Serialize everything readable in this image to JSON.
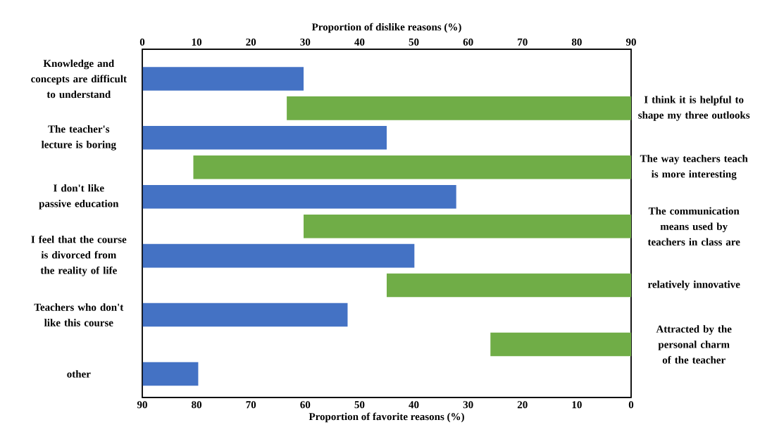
{
  "chart_data": [
    {
      "type": "bar",
      "orientation": "horizontal",
      "xlabel": "Proportion of dislike reasons (%)",
      "categories": [
        "Knowledge and concepts are difficult to understand",
        "The teacher's lecture is boring",
        "I don't like passive education",
        "I feel that the course is divorced from the reality of life",
        "Teachers who don't like this course",
        "other"
      ],
      "values": [
        29.7,
        45.0,
        57.8,
        50.1,
        37.8,
        10.3
      ],
      "color": "#4472c4",
      "xlim": [
        0,
        90
      ],
      "xticks": [
        0,
        10,
        20,
        30,
        40,
        50,
        60,
        70,
        80,
        90
      ]
    },
    {
      "type": "bar",
      "orientation": "horizontal",
      "xlabel": "Proportion of favorite reasons (%)",
      "categories": [
        "I think it is helpful to shape my three outlooks",
        "The way teachers teach is more interesting",
        "The communication means used by teachers in class are",
        "relatively innovative",
        "Attracted by the personal charm of the teacher"
      ],
      "values": [
        63.4,
        80.6,
        60.3,
        45.0,
        25.9
      ],
      "color": "#70ad47",
      "xlim": [
        90,
        0
      ],
      "xticks": [
        90,
        80,
        70,
        60,
        50,
        40,
        30,
        20,
        10,
        0
      ]
    }
  ]
}
